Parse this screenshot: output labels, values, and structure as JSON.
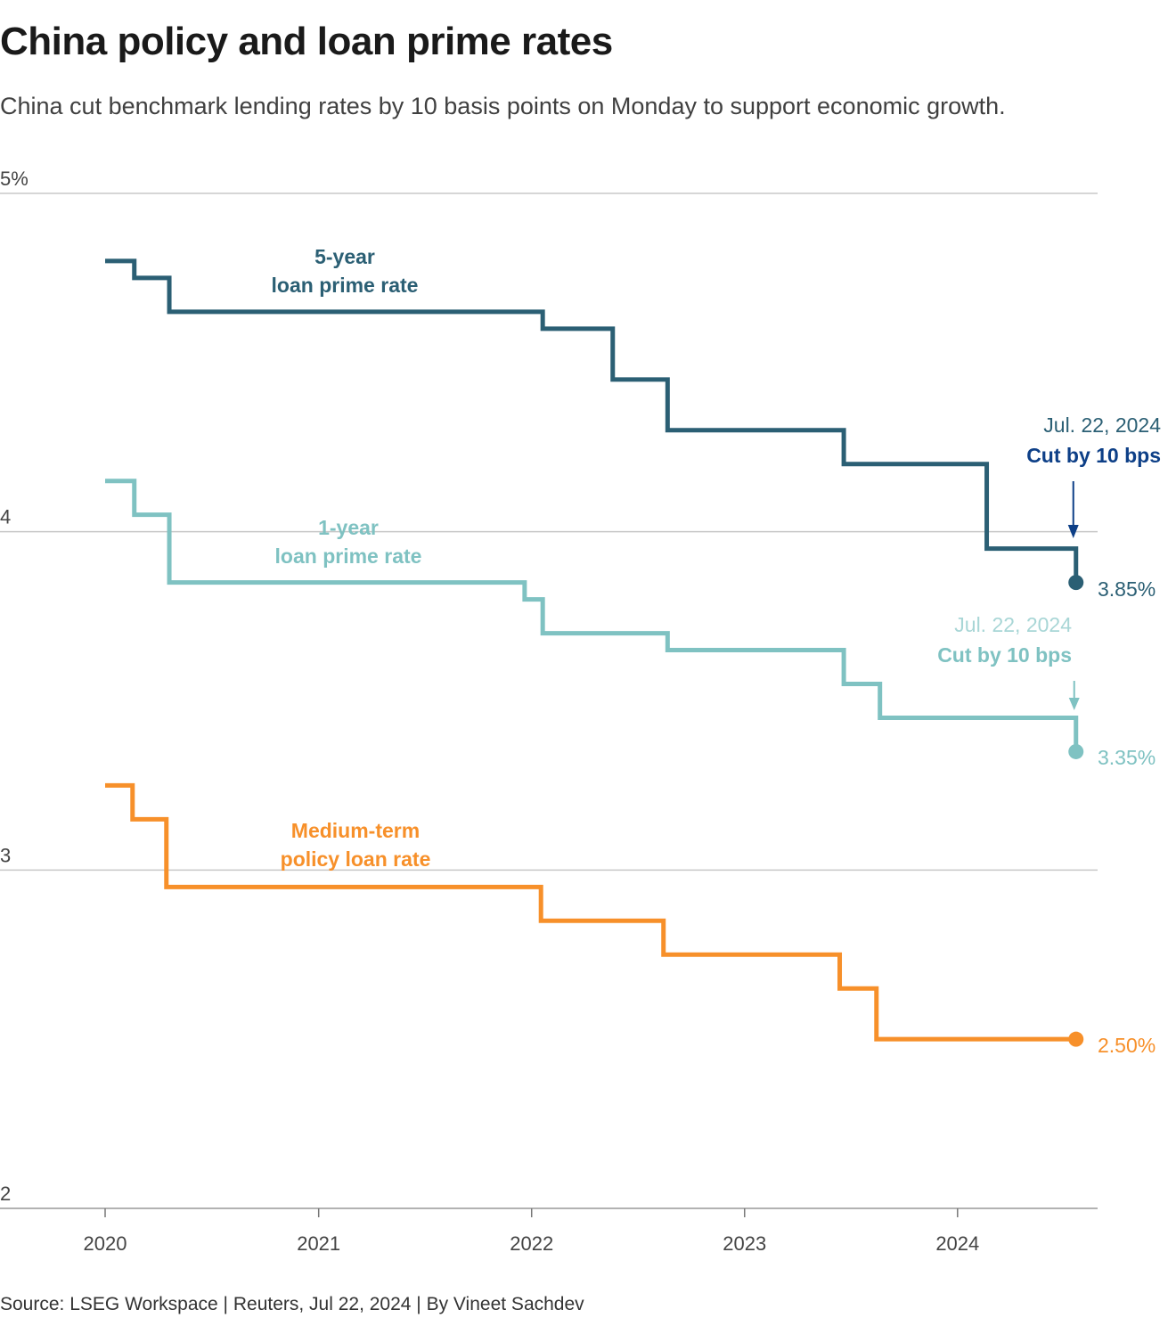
{
  "title": "China policy and loan prime rates",
  "subtitle": "China cut benchmark lending rates by 10 basis points on Monday to support economic growth.",
  "source": "Source: LSEG Workspace | Reuters, Jul 22, 2024 | By Vineet Sachdev",
  "chart_data": {
    "type": "line",
    "step": true,
    "ylim": [
      2,
      5
    ],
    "xlim": [
      "2020-01-01",
      "2024-07-22"
    ],
    "yticks": [
      {
        "value": 5,
        "label": "5%"
      },
      {
        "value": 4,
        "label": "4"
      },
      {
        "value": 3,
        "label": "3"
      },
      {
        "value": 2,
        "label": "2"
      }
    ],
    "xticks": [
      {
        "date": "2020-01-01",
        "label": "2020"
      },
      {
        "date": "2021-01-01",
        "label": "2021"
      },
      {
        "date": "2022-01-01",
        "label": "2022"
      },
      {
        "date": "2023-01-01",
        "label": "2023"
      },
      {
        "date": "2024-01-01",
        "label": "2024"
      }
    ],
    "grid": true,
    "series": [
      {
        "name_line1": "5-year",
        "name_line2": "loan prime rate",
        "color": "#2b5f74",
        "end_label": "3.85%",
        "points": [
          [
            "2020-01-01",
            4.8
          ],
          [
            "2020-02-20",
            4.75
          ],
          [
            "2020-04-20",
            4.65
          ],
          [
            "2022-01-20",
            4.6
          ],
          [
            "2022-05-20",
            4.45
          ],
          [
            "2022-08-22",
            4.3
          ],
          [
            "2023-06-20",
            4.2
          ],
          [
            "2024-02-20",
            3.95
          ],
          [
            "2024-07-22",
            3.85
          ]
        ],
        "annotation": {
          "date": "Jul. 22, 2024",
          "text": "Cut by 10 bps",
          "color": "#0d3f87",
          "date_color": "#2b5f74"
        }
      },
      {
        "name_line1": "1-year",
        "name_line2": "loan prime rate",
        "color": "#7fc2c2",
        "end_label": "3.35%",
        "points": [
          [
            "2020-01-01",
            4.15
          ],
          [
            "2020-02-20",
            4.05
          ],
          [
            "2020-04-20",
            3.85
          ],
          [
            "2021-12-20",
            3.8
          ],
          [
            "2022-01-20",
            3.7
          ],
          [
            "2022-08-22",
            3.65
          ],
          [
            "2023-06-20",
            3.55
          ],
          [
            "2023-08-21",
            3.45
          ],
          [
            "2024-07-22",
            3.35
          ]
        ],
        "annotation": {
          "date": "Jul. 22, 2024",
          "text": "Cut by 10 bps",
          "color": "#7fc2c2",
          "date_color": "#a8d6d6"
        }
      },
      {
        "name_line1": "Medium-term",
        "name_line2": "policy loan rate",
        "color": "#f7902a",
        "end_label": "2.50%",
        "points": [
          [
            "2020-01-01",
            3.25
          ],
          [
            "2020-02-17",
            3.15
          ],
          [
            "2020-04-15",
            2.95
          ],
          [
            "2022-01-17",
            2.85
          ],
          [
            "2022-08-15",
            2.75
          ],
          [
            "2023-06-13",
            2.65
          ],
          [
            "2023-08-15",
            2.5
          ],
          [
            "2024-07-22",
            2.5
          ]
        ]
      }
    ]
  }
}
